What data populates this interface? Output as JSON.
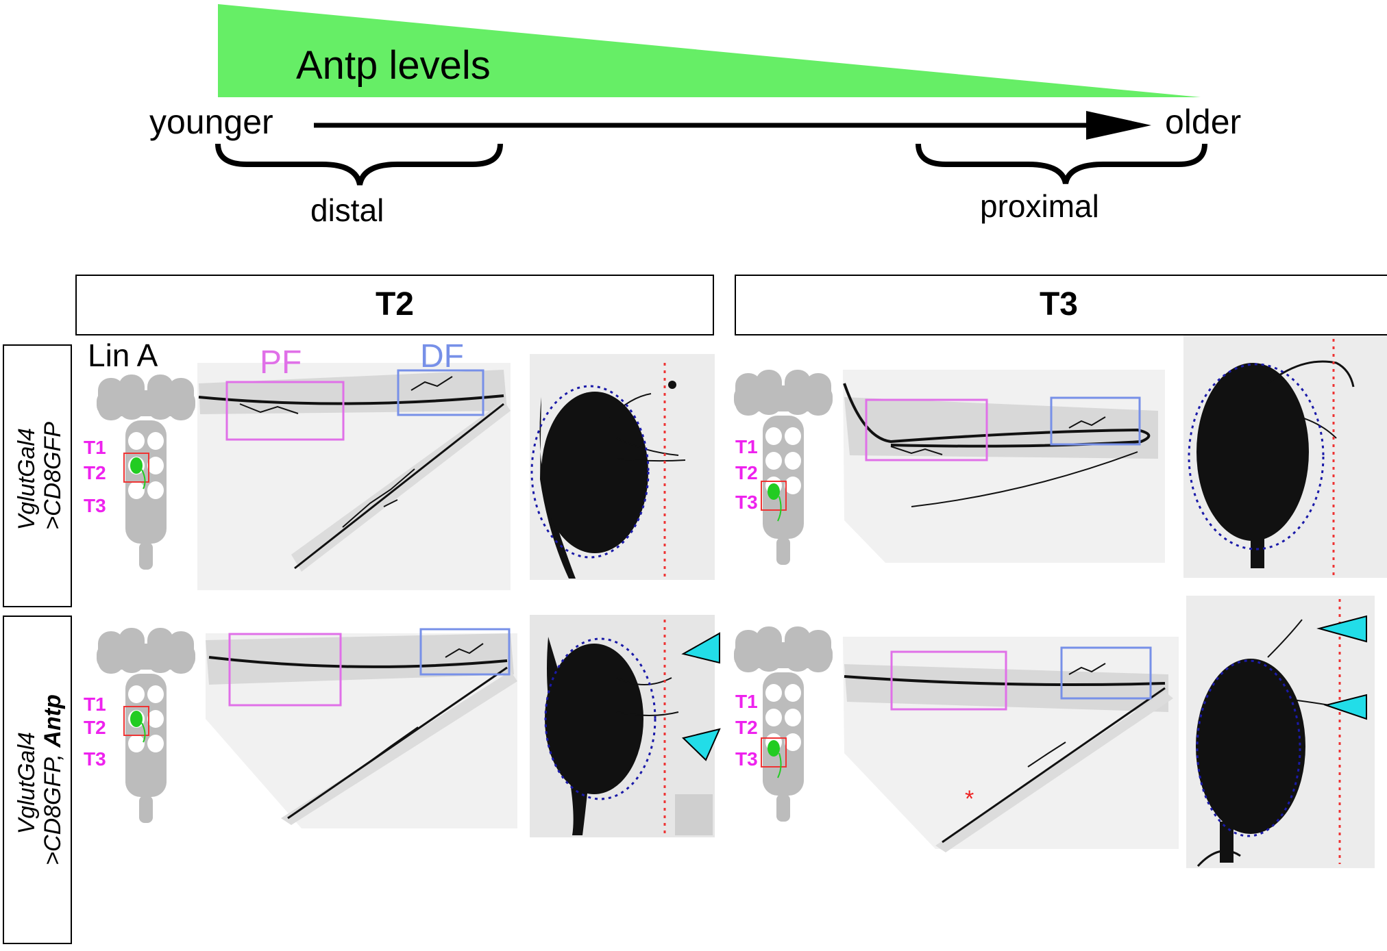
{
  "gradient": {
    "label": "Antp levels",
    "start_label": "younger",
    "end_label": "older",
    "left_bracket_label": "distal",
    "right_bracket_label": "proximal",
    "fill_color": "#66ee66"
  },
  "columns": {
    "left": "T2",
    "right": "T3"
  },
  "rows": {
    "top": {
      "line1": "VglutGal4",
      "line2": ">CD8GFP",
      "line2_bold": ""
    },
    "bottom": {
      "line1": "VglutGal4",
      "line2": ">CD8GFP, ",
      "line2_bold": "Antp"
    }
  },
  "lineage_label": "Lin A",
  "segments": [
    "T1",
    "T2",
    "T3"
  ],
  "box_labels": {
    "pf": "PF",
    "df": "DF"
  },
  "colors": {
    "pf_box": "#e070e8",
    "df_box": "#7790e8",
    "segment_text": "#ee22ee",
    "arrowhead": "#22dde8",
    "ellipse": "#1a1aa8",
    "midline": "#ee3333",
    "nerve": "#111111",
    "cns": "#bcbcbc",
    "neuron": "#22cc22"
  },
  "asterisk": "*"
}
